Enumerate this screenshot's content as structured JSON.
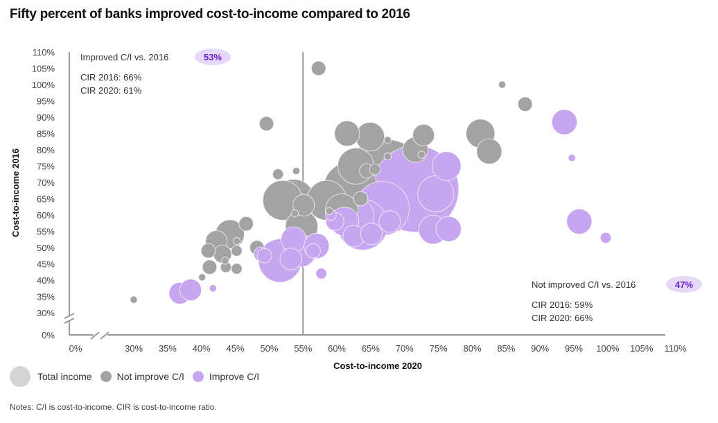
{
  "title": "Fifty percent of banks improved cost-to-income compared to 2016",
  "legend": {
    "total_income": "Total income",
    "not_improve": "Not improve C/I",
    "improve": "Improve C/I"
  },
  "notes": "Notes: C/I is cost-to-income. CIR is cost-to-income ratio.",
  "colors": {
    "not_improve": "#a3a3a3",
    "improve": "#c6a6ef",
    "badge_bg": "#e6d8f9",
    "badge_text": "#6a1fd1",
    "axis": "#9a9a9a"
  },
  "annotations": {
    "improved": {
      "label": "Improved C/I vs. 2016",
      "badge": "53%",
      "cir2016": "CIR 2016: 66%",
      "cir2020": "CIR 2020: 61%"
    },
    "not_improved": {
      "label": "Not improved C/I vs. 2016",
      "badge": "47%",
      "cir2016": "CIR 2016: 59%",
      "cir2020": "CIR 2020: 66%"
    }
  },
  "chart_data": {
    "type": "scatter",
    "title": "Fifty percent of banks improved cost-to-income compared to 2016",
    "xlabel": "Cost-to-income 2020",
    "ylabel": "Cost-to-income 2016",
    "xlim": [
      30,
      110
    ],
    "ylim": [
      30,
      110
    ],
    "x_ticks": [
      "0%",
      "30%",
      "35%",
      "40%",
      "45%",
      "50%",
      "55%",
      "60%",
      "65%",
      "70%",
      "75%",
      "80%",
      "85%",
      "90%",
      "95%",
      "100%",
      "105%",
      "110%"
    ],
    "y_ticks": [
      "110%",
      "105%",
      "100%",
      "95%",
      "90%",
      "85%",
      "80%",
      "75%",
      "70%",
      "65%",
      "60%",
      "55%",
      "50%",
      "45%",
      "40%",
      "35%",
      "30%",
      "0%"
    ],
    "divider_x": 55,
    "size_legend": "Total income",
    "series": [
      {
        "name": "Not improve C/I",
        "points": [
          [
            30,
            34,
            1
          ],
          [
            40.1,
            40.9,
            1
          ],
          [
            41,
            49,
            2
          ],
          [
            41.2,
            44,
            2
          ],
          [
            42.2,
            51.9,
            3
          ],
          [
            43.1,
            48,
            2.5
          ],
          [
            43.5,
            46,
            1
          ],
          [
            43.6,
            44,
            1.5
          ],
          [
            44.2,
            54.1,
            4
          ],
          [
            45.2,
            49,
            1.5
          ],
          [
            45.2,
            43.5,
            1.5
          ],
          [
            45.2,
            52,
            1
          ],
          [
            46.6,
            57.3,
            2
          ],
          [
            48.2,
            50,
            2
          ],
          [
            49.6,
            88,
            2
          ],
          [
            51.3,
            72.5,
            1.5
          ],
          [
            52,
            64.5,
            5.5
          ],
          [
            53.6,
            64.3,
            6
          ],
          [
            54,
            73.5,
            1
          ],
          [
            54.8,
            56.4,
            4.5
          ],
          [
            55.1,
            63,
            3
          ],
          [
            53.8,
            60.5,
            1
          ],
          [
            57.3,
            105,
            2
          ],
          [
            58.5,
            64.5,
            5.5
          ],
          [
            58.9,
            61.2,
            1
          ],
          [
            61.5,
            85,
            3.5
          ],
          [
            60.7,
            61.5,
            4.5
          ],
          [
            62,
            68,
            7.5
          ],
          [
            62.8,
            75,
            5
          ],
          [
            63.5,
            65,
            2
          ],
          [
            64.4,
            73.5,
            2
          ],
          [
            64.9,
            84,
            4
          ],
          [
            65.6,
            74,
            1.5
          ],
          [
            67.1,
            68.8,
            13
          ],
          [
            67.5,
            78,
            1
          ],
          [
            67.5,
            83,
            1
          ],
          [
            71.6,
            80,
            3.5
          ],
          [
            72.8,
            84.5,
            3
          ],
          [
            72.5,
            78.5,
            1
          ],
          [
            81.2,
            85,
            4
          ],
          [
            82.5,
            79.5,
            3.5
          ],
          [
            84.4,
            100,
            1
          ],
          [
            87.8,
            94,
            2
          ]
        ]
      },
      {
        "name": "Improve C/I",
        "points": [
          [
            36.8,
            36,
            3
          ],
          [
            38.4,
            37,
            3
          ],
          [
            41.7,
            37.5,
            1
          ],
          [
            48.8,
            48,
            2
          ],
          [
            49.3,
            47.5,
            2
          ],
          [
            51.6,
            46,
            6
          ],
          [
            53.2,
            46.5,
            3
          ],
          [
            53.6,
            52.5,
            3.5
          ],
          [
            54.6,
            49,
            4.5
          ],
          [
            56.5,
            49,
            2
          ],
          [
            57,
            50.5,
            3.5
          ],
          [
            57.7,
            42,
            1.5
          ],
          [
            59.1,
            60,
            1.5
          ],
          [
            59.7,
            58,
            2.5
          ],
          [
            61.1,
            58,
            4
          ],
          [
            62.5,
            53.5,
            3
          ],
          [
            62.8,
            59.8,
            5
          ],
          [
            63.8,
            57,
            7
          ],
          [
            65.1,
            54.2,
            3
          ],
          [
            66.7,
            62,
            7.5
          ],
          [
            67.8,
            58,
            3
          ],
          [
            71.6,
            68,
            12
          ],
          [
            74.2,
            55.5,
            4
          ],
          [
            74.6,
            66.5,
            5
          ],
          [
            76.2,
            75,
            4
          ],
          [
            76.5,
            55.7,
            3.5
          ],
          [
            93.6,
            88.5,
            3.5
          ],
          [
            94.7,
            77.5,
            1
          ],
          [
            95.8,
            58,
            3.5
          ],
          [
            99.7,
            53,
            1.5
          ]
        ]
      }
    ],
    "point_format": "[x_2020_percent, y_2016_percent, relative_total_income]"
  }
}
